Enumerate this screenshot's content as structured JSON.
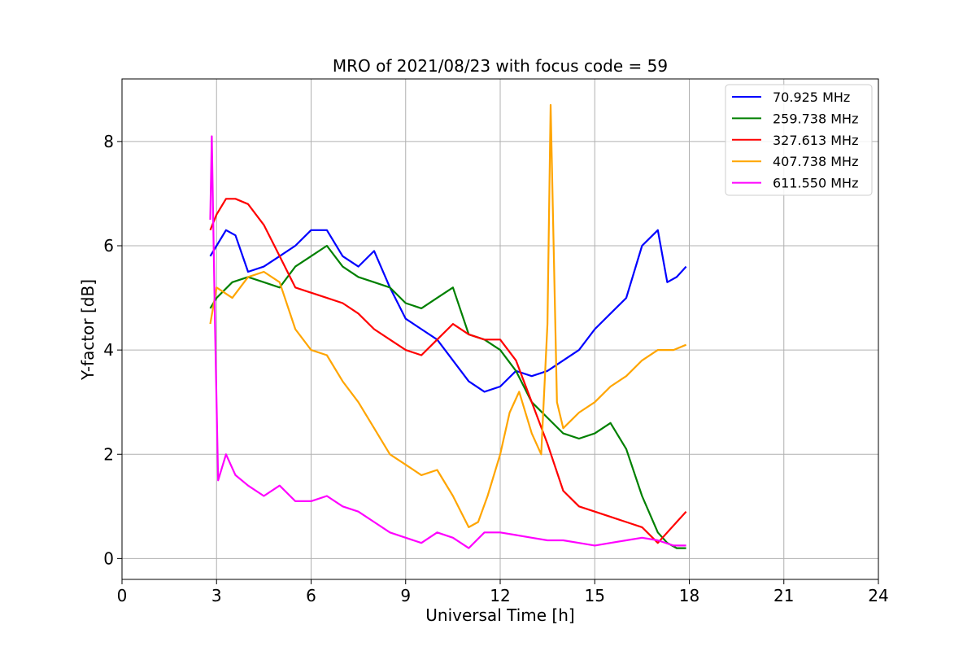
{
  "chart_data": {
    "type": "line",
    "title": "MRO of 2021/08/23 with focus code = 59",
    "xlabel": "Universal Time [h]",
    "ylabel": "Y-factor [dB]",
    "xlim": [
      0,
      24
    ],
    "ylim": [
      -0.4,
      9.2
    ],
    "xticks": [
      0,
      3,
      6,
      9,
      12,
      15,
      18,
      21,
      24
    ],
    "yticks": [
      0,
      2,
      4,
      6,
      8
    ],
    "grid": true,
    "legend_position": "top-right",
    "series": [
      {
        "name": "70.925 MHz",
        "color": "#0000ff",
        "x": [
          2.8,
          3.0,
          3.3,
          3.6,
          4.0,
          4.5,
          5.0,
          5.5,
          6.0,
          6.5,
          7.0,
          7.5,
          8.0,
          8.5,
          9.0,
          9.5,
          10.0,
          10.5,
          11.0,
          11.5,
          12.0,
          12.5,
          13.0,
          13.5,
          14.0,
          14.5,
          15.0,
          15.5,
          16.0,
          16.5,
          17.0,
          17.3,
          17.6,
          17.9
        ],
        "y": [
          5.8,
          6.0,
          6.3,
          6.2,
          5.5,
          5.6,
          5.8,
          6.0,
          6.3,
          6.3,
          5.8,
          5.6,
          5.9,
          5.2,
          4.6,
          4.4,
          4.2,
          3.8,
          3.4,
          3.2,
          3.3,
          3.6,
          3.5,
          3.6,
          3.8,
          4.0,
          4.4,
          4.7,
          5.0,
          6.0,
          6.3,
          5.3,
          5.4,
          5.6
        ]
      },
      {
        "name": "259.738 MHz",
        "color": "#008000",
        "x": [
          2.8,
          3.0,
          3.5,
          4.0,
          4.5,
          5.0,
          5.5,
          6.0,
          6.5,
          7.0,
          7.5,
          8.0,
          8.5,
          9.0,
          9.5,
          10.0,
          10.5,
          11.0,
          11.5,
          12.0,
          12.5,
          13.0,
          13.5,
          14.0,
          14.5,
          15.0,
          15.5,
          16.0,
          16.5,
          17.0,
          17.3,
          17.6,
          17.9
        ],
        "y": [
          4.8,
          5.0,
          5.3,
          5.4,
          5.3,
          5.2,
          5.6,
          5.8,
          6.0,
          5.6,
          5.4,
          5.3,
          5.2,
          4.9,
          4.8,
          5.0,
          5.2,
          4.3,
          4.2,
          4.0,
          3.6,
          3.0,
          2.7,
          2.4,
          2.3,
          2.4,
          2.6,
          2.1,
          1.2,
          0.5,
          0.3,
          0.2,
          0.2
        ]
      },
      {
        "name": "327.613 MHz",
        "color": "#ff0000",
        "x": [
          2.8,
          3.0,
          3.3,
          3.6,
          4.0,
          4.5,
          5.0,
          5.5,
          6.0,
          6.5,
          7.0,
          7.5,
          8.0,
          8.5,
          9.0,
          9.5,
          10.0,
          10.5,
          11.0,
          11.5,
          12.0,
          12.5,
          13.0,
          13.5,
          14.0,
          14.5,
          15.0,
          15.5,
          16.0,
          16.5,
          17.0,
          17.3,
          17.6,
          17.9
        ],
        "y": [
          6.3,
          6.6,
          6.9,
          6.9,
          6.8,
          6.4,
          5.8,
          5.2,
          5.1,
          5.0,
          4.9,
          4.7,
          4.4,
          4.2,
          4.0,
          3.9,
          4.2,
          4.5,
          4.3,
          4.2,
          4.2,
          3.8,
          3.0,
          2.2,
          1.3,
          1.0,
          0.9,
          0.8,
          0.7,
          0.6,
          0.3,
          0.5,
          0.7,
          0.9
        ]
      },
      {
        "name": "407.738 MHz",
        "color": "#ffa500",
        "x": [
          2.8,
          3.0,
          3.5,
          4.0,
          4.5,
          5.0,
          5.5,
          6.0,
          6.5,
          7.0,
          7.5,
          8.0,
          8.5,
          9.0,
          9.5,
          10.0,
          10.5,
          11.0,
          11.3,
          11.6,
          12.0,
          12.3,
          12.6,
          13.0,
          13.3,
          13.5,
          13.6,
          13.8,
          14.0,
          14.5,
          15.0,
          15.5,
          16.0,
          16.5,
          17.0,
          17.5,
          17.9
        ],
        "y": [
          4.5,
          5.2,
          5.0,
          5.4,
          5.5,
          5.3,
          4.4,
          4.0,
          3.9,
          3.4,
          3.0,
          2.5,
          2.0,
          1.8,
          1.6,
          1.7,
          1.2,
          0.6,
          0.7,
          1.2,
          2.0,
          2.8,
          3.2,
          2.4,
          2.0,
          4.5,
          8.7,
          3.0,
          2.5,
          2.8,
          3.0,
          3.3,
          3.5,
          3.8,
          4.0,
          4.0,
          4.1
        ]
      },
      {
        "name": "611.550 MHz",
        "color": "#ff00ff",
        "x": [
          2.8,
          2.85,
          2.95,
          3.05,
          3.3,
          3.6,
          4.0,
          4.5,
          5.0,
          5.5,
          6.0,
          6.5,
          7.0,
          7.5,
          8.0,
          8.5,
          9.0,
          9.5,
          10.0,
          10.5,
          11.0,
          11.5,
          12.0,
          12.5,
          13.0,
          13.5,
          14.0,
          14.5,
          15.0,
          15.5,
          16.0,
          16.5,
          17.0,
          17.5,
          17.9
        ],
        "y": [
          6.5,
          8.1,
          4.5,
          1.5,
          2.0,
          1.6,
          1.4,
          1.2,
          1.4,
          1.1,
          1.1,
          1.2,
          1.0,
          0.9,
          0.7,
          0.5,
          0.4,
          0.3,
          0.5,
          0.4,
          0.2,
          0.5,
          0.5,
          0.45,
          0.4,
          0.35,
          0.35,
          0.3,
          0.25,
          0.3,
          0.35,
          0.4,
          0.35,
          0.25,
          0.25
        ]
      }
    ]
  }
}
